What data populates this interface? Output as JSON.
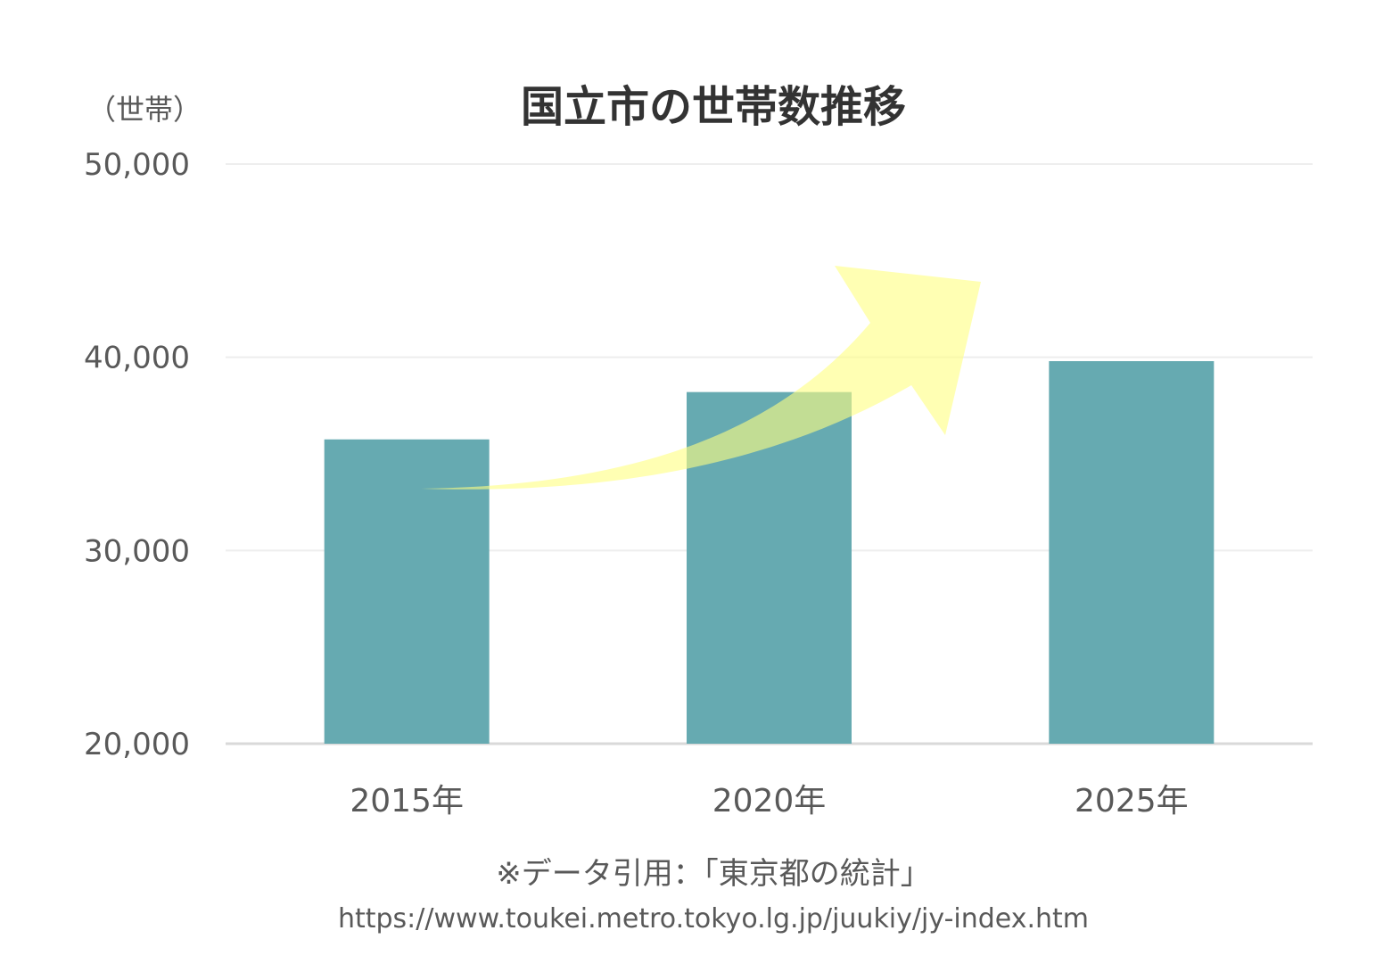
{
  "chart_data": {
    "type": "bar",
    "title": "国立市の世帯数推移",
    "ylabel": "（世帯）",
    "categories": [
      "2015年",
      "2020年",
      "2025年"
    ],
    "values": [
      35750,
      38200,
      39800
    ],
    "ylim": [
      20000,
      50000
    ],
    "yticks": [
      20000,
      30000,
      40000,
      50000
    ],
    "ytick_labels": [
      "20,000",
      "30,000",
      "40,000",
      "50,000"
    ],
    "grid": true,
    "bar_color": "#66aab1",
    "annotation_arrow": {
      "meaning": "increasing trend",
      "color": "#ffff80"
    }
  },
  "footer": {
    "source": "※データ引用：「東京都の統計」",
    "url": "https://www.toukei.metro.tokyo.lg.jp/juukiy/jy-index.htm"
  }
}
